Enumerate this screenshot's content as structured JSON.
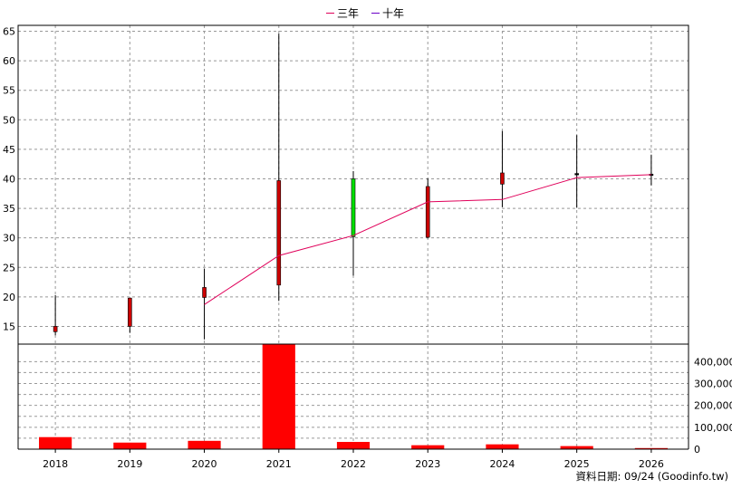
{
  "legend": [
    {
      "label": "三年",
      "color": "#e0005a"
    },
    {
      "label": "十年",
      "color": "#6a00c8"
    }
  ],
  "footer": "資料日期: 09/24  (Goodinfo.tw)",
  "chart_data": [
    {
      "type": "candlestick",
      "title": "",
      "categories": [
        "2018",
        "2019",
        "2020",
        "2021",
        "2022",
        "2023",
        "2024",
        "2025",
        "2026"
      ],
      "ylim": [
        12,
        66
      ],
      "yticks": [
        15,
        20,
        25,
        30,
        35,
        40,
        45,
        50,
        55,
        60,
        65
      ],
      "grid": true,
      "legend_position": "top",
      "candles": [
        {
          "x": "2018",
          "open": 15.0,
          "close": 14.1,
          "high": 20.3,
          "low": 13.5,
          "color": "#cc0000"
        },
        {
          "x": "2019",
          "open": 19.8,
          "close": 15.0,
          "high": 19.8,
          "low": 13.9,
          "color": "#cc0000"
        },
        {
          "x": "2020",
          "open": 21.6,
          "close": 19.9,
          "high": 24.8,
          "low": 12.8,
          "color": "#cc0000"
        },
        {
          "x": "2021",
          "open": 39.7,
          "close": 22.0,
          "high": 64.6,
          "low": 19.3,
          "color": "#cc0000"
        },
        {
          "x": "2022",
          "open": 30.2,
          "close": 40.0,
          "high": 41.3,
          "low": 23.6,
          "color": "#00e000"
        },
        {
          "x": "2023",
          "open": 38.7,
          "close": 30.1,
          "high": 40.1,
          "low": 29.9,
          "color": "#cc0000"
        },
        {
          "x": "2024",
          "open": 41.0,
          "close": 39.1,
          "high": 48.1,
          "low": 35.2,
          "color": "#cc0000"
        },
        {
          "x": "2025",
          "open": 40.9,
          "close": 40.7,
          "high": 47.4,
          "low": 35.1,
          "color": "#000000"
        },
        {
          "x": "2026",
          "open": 40.8,
          "close": 40.7,
          "high": 44.1,
          "low": 38.9,
          "color": "#000000"
        }
      ],
      "series": [
        {
          "name": "三年",
          "color": "#e0005a",
          "points": [
            {
              "x": "2020",
              "y": 18.7
            },
            {
              "x": "2021",
              "y": 27.0
            },
            {
              "x": "2022",
              "y": 30.4
            },
            {
              "x": "2023",
              "y": 36.1
            },
            {
              "x": "2024",
              "y": 36.5
            },
            {
              "x": "2025",
              "y": 40.2
            },
            {
              "x": "2026",
              "y": 40.7
            }
          ]
        }
      ]
    },
    {
      "type": "bar",
      "categories": [
        "2018",
        "2019",
        "2020",
        "2021",
        "2022",
        "2023",
        "2024",
        "2025",
        "2026"
      ],
      "values": [
        55000,
        30000,
        38000,
        480000,
        33000,
        18000,
        22000,
        14000,
        5000
      ],
      "color": "#ff0000",
      "ylim": [
        0,
        480000
      ],
      "yticks": [
        0,
        100000,
        200000,
        300000,
        400000
      ],
      "ytick_labels": [
        "0",
        "100,000",
        "200,000",
        "300,000",
        "400,000"
      ],
      "grid": true
    }
  ]
}
